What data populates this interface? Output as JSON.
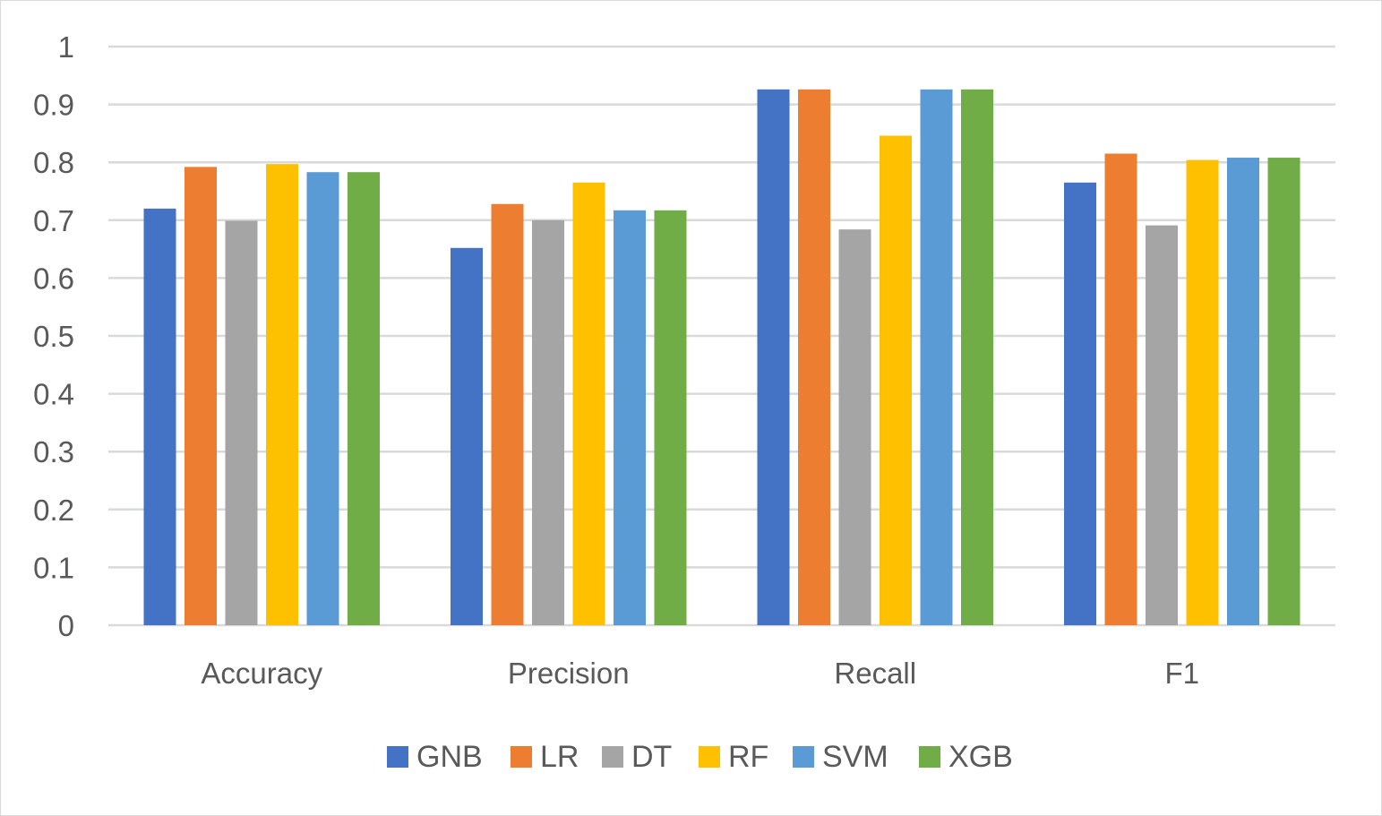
{
  "chart_data": {
    "type": "bar",
    "categories": [
      "Accuracy",
      "Precision",
      "Recall",
      "F1"
    ],
    "series": [
      {
        "name": "GNB",
        "color": "#4472C4",
        "values": [
          0.72,
          0.652,
          0.926,
          0.765
        ]
      },
      {
        "name": "LR",
        "color": "#ED7D31",
        "values": [
          0.792,
          0.728,
          0.926,
          0.815
        ]
      },
      {
        "name": "DT",
        "color": "#A5A5A5",
        "values": [
          0.699,
          0.7,
          0.684,
          0.691
        ]
      },
      {
        "name": "RF",
        "color": "#FFC000",
        "values": [
          0.797,
          0.765,
          0.846,
          0.804
        ]
      },
      {
        "name": "SVM",
        "color": "#5B9BD5",
        "values": [
          0.783,
          0.717,
          0.926,
          0.808
        ]
      },
      {
        "name": "XGB",
        "color": "#70AD47",
        "values": [
          0.783,
          0.717,
          0.926,
          0.808
        ]
      }
    ],
    "ylim": [
      0,
      1
    ],
    "y_ticks": [
      "0",
      "0.1",
      "0.2",
      "0.3",
      "0.4",
      "0.5",
      "0.6",
      "0.7",
      "0.8",
      "0.9",
      "1"
    ],
    "grid": true,
    "legend": "bottom-center",
    "gridline_color": "#d9d9d9",
    "title": "",
    "xlabel": "",
    "ylabel": ""
  }
}
